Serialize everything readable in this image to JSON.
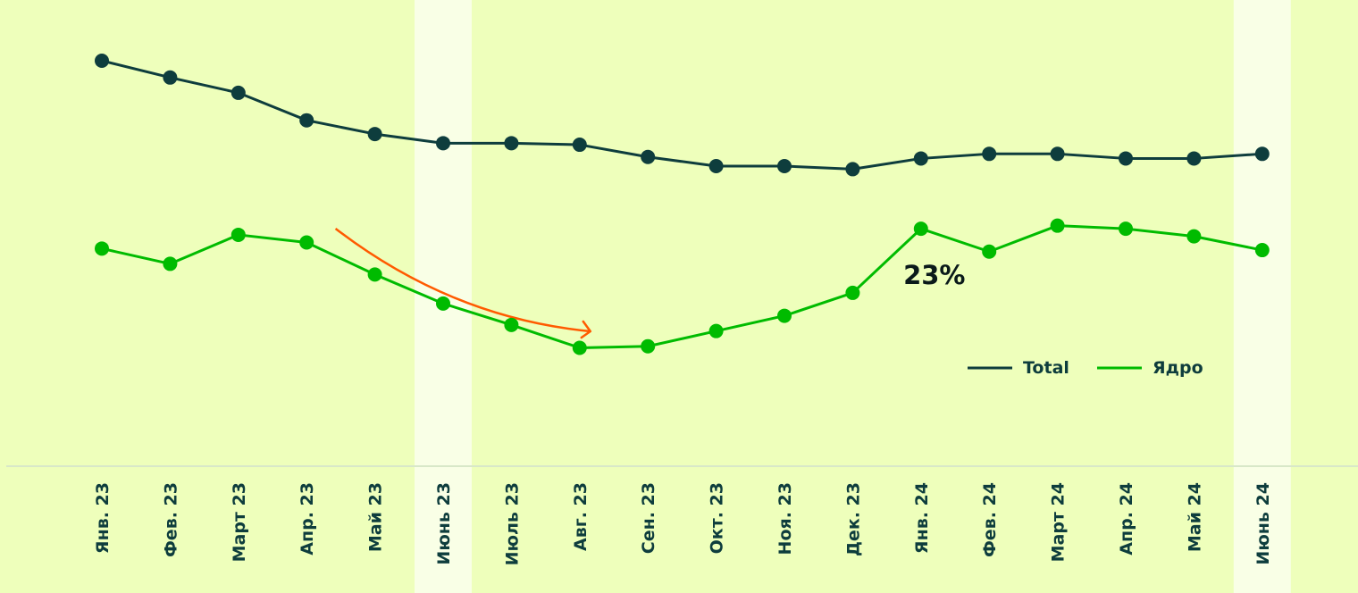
{
  "chart_data": {
    "type": "line",
    "categories": [
      "Янв. 23",
      "Фев. 23",
      "Март 23",
      "Апр. 23",
      "Май 23",
      "Июнь 23",
      "Июль 23",
      "Авг. 23",
      "Сен. 23",
      "Окт. 23",
      "Ноя. 23",
      "Дек. 23",
      "Янв. 24",
      "Фев. 24",
      "Март 24",
      "Апр. 24",
      "Май 24",
      "Июнь 24"
    ],
    "series": [
      {
        "name": "Total",
        "color": "#0e3d3d",
        "values": [
          100,
          94.5,
          89.5,
          80.5,
          76,
          73,
          73,
          72.5,
          68.5,
          65.5,
          65.5,
          64.5,
          68,
          69.5,
          69.5,
          68,
          68,
          69.5
        ]
      },
      {
        "name": "Ядро",
        "color": "#00bb00",
        "values": [
          38.5,
          33.5,
          43,
          40.5,
          30,
          20.5,
          13.5,
          6,
          6.5,
          11.5,
          16.5,
          24,
          45,
          37.5,
          46,
          45,
          42.5,
          38
        ]
      }
    ],
    "highlighted_categories": [
      "Июнь 23",
      "Июнь 24"
    ],
    "annotations": [
      {
        "text": "23%",
        "near_category": "Янв. 24"
      }
    ],
    "trend_arrow": {
      "from_category": "Май 23",
      "to_category": "Авг. 23",
      "color": "#ff5a00"
    },
    "xlabel": "",
    "ylabel": "",
    "ylim": [
      0,
      100
    ],
    "grid": false,
    "legend": "right"
  },
  "colors": {
    "background": "#eeffbb",
    "highlight_band": "#f9ffe6",
    "baseline": "#d8e8c8"
  }
}
